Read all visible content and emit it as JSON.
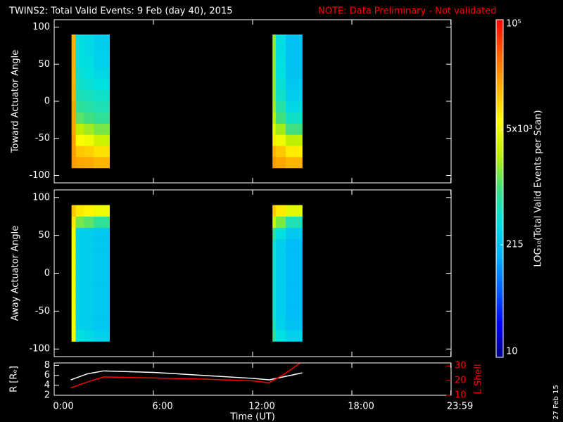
{
  "title": "TWINS2: Total Valid Events:  9 Feb (day  40), 2015",
  "note": "NOTE: Data Preliminary - Not validated",
  "footer_date": "27 Feb 15",
  "colorbar": {
    "label": "LOG₁₀(Total Valid Events per Scan)",
    "scale": "log",
    "lim": [
      10,
      100000
    ],
    "ticks": [
      10,
      215,
      {
        "value": 5000,
        "label": "5x10³"
      },
      {
        "value": 100000,
        "label": "10⁵"
      }
    ],
    "colormap": [
      "#000080",
      "#0000ff",
      "#0060ff",
      "#00b0ff",
      "#00e0e0",
      "#40e080",
      "#c0f000",
      "#ffff00",
      "#ffb000",
      "#ff6000",
      "#ff0000"
    ]
  },
  "chart_data": [
    {
      "type": "heatmap",
      "ylabel": "Toward Actuator Angle",
      "xlim": [
        0,
        24
      ],
      "ylim": [
        -110,
        110
      ],
      "yticks": [
        -100,
        -50,
        0,
        50,
        100
      ],
      "y_bins": [
        -90,
        -75,
        -60,
        -45,
        -30,
        -15,
        0,
        15,
        30,
        45,
        60,
        75,
        90
      ],
      "blocks": [
        {
          "x_bins": [
            1.05,
            1.3,
            1.8,
            2.4,
            3.35
          ],
          "values": [
            [
              20000,
              18000,
              17000,
              15000
            ],
            [
              20000,
              12000,
              11000,
              9000
            ],
            [
              20000,
              6000,
              5000,
              3000
            ],
            [
              18000,
              2500,
              2000,
              1500
            ],
            [
              18000,
              1200,
              1000,
              800
            ],
            [
              18000,
              800,
              700,
              600
            ],
            [
              16000,
              600,
              550,
              500
            ],
            [
              16000,
              500,
              450,
              400
            ],
            [
              16000,
              450,
              400,
              350
            ],
            [
              16000,
              400,
              380,
              300
            ],
            [
              16000,
              400,
              350,
              300
            ],
            [
              15000,
              380,
              350,
              280
            ]
          ]
        },
        {
          "x_bins": [
            13.2,
            13.4,
            14.0,
            15.0
          ],
          "values": [
            [
              20000,
              18000,
              15000
            ],
            [
              15000,
              12000,
              8000
            ],
            [
              8000,
              5000,
              2500
            ],
            [
              4000,
              2000,
              1000
            ],
            [
              2500,
              1000,
              500
            ],
            [
              2000,
              700,
              350
            ],
            [
              1800,
              500,
              280
            ],
            [
              1800,
              450,
              250
            ],
            [
              1800,
              400,
              230
            ],
            [
              1800,
              400,
              220
            ],
            [
              1800,
              380,
              220
            ],
            [
              1800,
              380,
              220
            ]
          ]
        }
      ]
    },
    {
      "type": "heatmap",
      "ylabel": "Away Actuator Angle",
      "xlim": [
        0,
        24
      ],
      "ylim": [
        -110,
        110
      ],
      "yticks": [
        -100,
        -50,
        0,
        50,
        100
      ],
      "y_bins": [
        -90,
        -75,
        -60,
        -45,
        -30,
        -15,
        0,
        15,
        30,
        45,
        60,
        75,
        90
      ],
      "blocks": [
        {
          "x_bins": [
            1.05,
            1.3,
            1.8,
            2.4,
            3.35
          ],
          "values": [
            [
              6000,
              400,
              350,
              300
            ],
            [
              6000,
              300,
              280,
              250
            ],
            [
              6000,
              300,
              280,
              250
            ],
            [
              6000,
              300,
              280,
              250
            ],
            [
              6000,
              300,
              280,
              250
            ],
            [
              6000,
              300,
              280,
              250
            ],
            [
              6000,
              300,
              280,
              250
            ],
            [
              6000,
              300,
              280,
              250
            ],
            [
              6000,
              300,
              280,
              250
            ],
            [
              6000,
              300,
              280,
              250
            ],
            [
              8000,
              1500,
              1200,
              800
            ],
            [
              12000,
              8000,
              7000,
              5000
            ]
          ]
        },
        {
          "x_bins": [
            13.2,
            13.4,
            14.0,
            15.0
          ],
          "values": [
            [
              800,
              400,
              300
            ],
            [
              600,
              300,
              220
            ],
            [
              500,
              280,
              200
            ],
            [
              500,
              280,
              200
            ],
            [
              500,
              280,
              200
            ],
            [
              500,
              280,
              200
            ],
            [
              500,
              280,
              200
            ],
            [
              500,
              280,
              200
            ],
            [
              500,
              280,
              200
            ],
            [
              800,
              400,
              250
            ],
            [
              3000,
              1500,
              600
            ],
            [
              12000,
              8000,
              4000
            ]
          ]
        }
      ]
    },
    {
      "type": "line",
      "xlabel": "Time (UT)",
      "xlim": [
        0,
        24
      ],
      "xticks": [
        {
          "value": 0,
          "label": "0:00"
        },
        {
          "value": 6,
          "label": "6:00"
        },
        {
          "value": 12,
          "label": "12:00"
        },
        {
          "value": 18,
          "label": "18:00"
        },
        {
          "value": 23.983,
          "label": "23:59"
        }
      ],
      "ylabel": "R [Rₑ]",
      "ylim": [
        2,
        8.5
      ],
      "yticks": [
        2,
        4,
        6,
        8
      ],
      "y2label": "L Shell",
      "y2lim": [
        10,
        32
      ],
      "y2ticks": [
        10,
        20,
        30
      ],
      "x": [
        1.0,
        2.0,
        3.0,
        6.0,
        9.0,
        12.0,
        13.0,
        14.0,
        15.0
      ],
      "series": [
        {
          "color": "#ffffff",
          "values": [
            5.1,
            6.3,
            6.9,
            6.6,
            6.0,
            5.4,
            5.1,
            5.8,
            6.5
          ]
        },
        {
          "color": "#ff0000",
          "axis": "y2",
          "values": [
            15,
            19,
            22.5,
            21.8,
            21,
            19.8,
            18.5,
            25,
            33
          ]
        }
      ]
    }
  ]
}
